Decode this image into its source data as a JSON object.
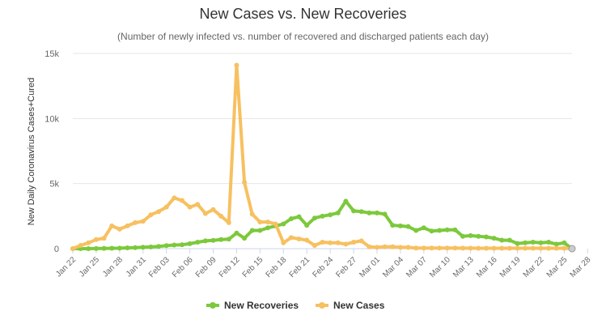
{
  "chart_data": {
    "type": "line",
    "title": "New Cases vs. New Recoveries",
    "subtitle": "(Number of newly infected vs. number of recovered and discharged patients each day)",
    "ylabel": "New Daily Coronavirus Cases+Cured",
    "xlabel": "",
    "ylim": [
      0,
      15000
    ],
    "y_ticks": [
      0,
      5000,
      10000,
      15000
    ],
    "y_tick_labels": [
      "0",
      "5k",
      "10k",
      "15k"
    ],
    "x_tick_labels": [
      "Jan 22",
      "Jan 25",
      "Jan 28",
      "Jan 31",
      "Feb 03",
      "Feb 06",
      "Feb 09",
      "Feb 12",
      "Feb 15",
      "Feb 18",
      "Feb 21",
      "Feb 24",
      "Feb 27",
      "Mar 01",
      "Mar 04",
      "Mar 07",
      "Mar 10",
      "Mar 13",
      "Mar 16",
      "Mar 19",
      "Mar 22",
      "Mar 25",
      "Mar 28"
    ],
    "x_tick_every": 3,
    "grid": true,
    "legend": "bottom-center",
    "series": [
      {
        "name": "New Recoveries",
        "color": "#7cc93c",
        "values": [
          0,
          0,
          0,
          10,
          20,
          30,
          40,
          60,
          80,
          110,
          130,
          170,
          230,
          280,
          300,
          380,
          500,
          600,
          640,
          700,
          730,
          1200,
          800,
          1400,
          1400,
          1600,
          1750,
          1900,
          2300,
          2450,
          1800,
          2350,
          2500,
          2600,
          2750,
          3650,
          2900,
          2850,
          2750,
          2750,
          2650,
          1800,
          1750,
          1700,
          1400,
          1600,
          1350,
          1400,
          1450,
          1450,
          950,
          1000,
          950,
          900,
          800,
          650,
          650,
          400,
          450,
          500,
          450,
          500,
          350,
          450,
          0
        ]
      },
      {
        "name": "New Cases",
        "color": "#f7c060",
        "values": [
          0,
          250,
          450,
          700,
          800,
          1750,
          1500,
          1750,
          2000,
          2100,
          2600,
          2850,
          3200,
          3900,
          3700,
          3200,
          3400,
          2700,
          3000,
          2500,
          2000,
          14100,
          5100,
          2650,
          2050,
          2050,
          1900,
          450,
          850,
          750,
          650,
          250,
          500,
          450,
          450,
          350,
          500,
          600,
          150,
          100,
          150,
          150,
          100,
          100,
          50,
          50,
          50,
          50,
          50,
          50,
          40,
          40,
          30,
          30,
          30,
          30,
          30,
          30,
          30,
          30,
          30,
          30,
          30,
          30,
          0
        ]
      }
    ]
  }
}
